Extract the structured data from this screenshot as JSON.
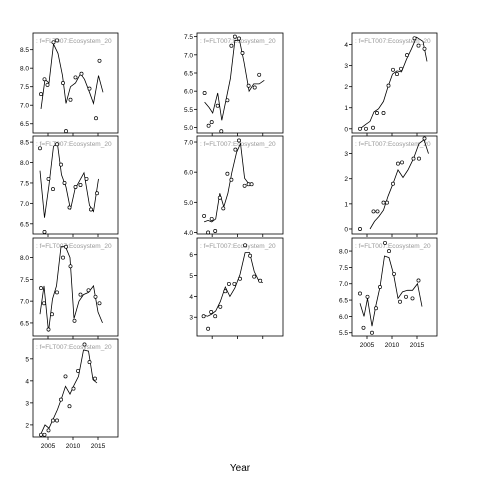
{
  "xlabel": "Year",
  "panel_title": "f=FLT007:Ecosystem_20",
  "chart_data": [
    {
      "type": "scatter",
      "title": "f=FLT007:Ecosystem_20",
      "xlim": [
        2002,
        2019
      ],
      "ylim": [
        6.25,
        8.95
      ],
      "yticks": [
        6.5,
        7.0,
        7.5,
        8.0,
        8.5
      ],
      "ytick_labels": [
        "6.5",
        "7.0",
        "7.5",
        "8.0",
        "8.5"
      ],
      "xtick_labels": [],
      "points": [
        [
          2003.6,
          7.3
        ],
        [
          2004.3,
          7.7
        ],
        [
          2004.9,
          7.55
        ],
        [
          2006.1,
          8.7
        ],
        [
          2006.8,
          8.75
        ],
        [
          2008.0,
          7.6
        ],
        [
          2008.6,
          6.3
        ],
        [
          2009.5,
          7.15
        ],
        [
          2010.5,
          7.75
        ],
        [
          2011.7,
          7.85
        ],
        [
          2013.3,
          7.45
        ],
        [
          2014.6,
          6.65
        ],
        [
          2015.3,
          8.2
        ]
      ],
      "line": [
        [
          2003.6,
          6.9
        ],
        [
          2004.4,
          7.7
        ],
        [
          2005.2,
          7.6
        ],
        [
          2006.1,
          8.65
        ],
        [
          2007.0,
          8.4
        ],
        [
          2007.9,
          7.8
        ],
        [
          2008.6,
          7.05
        ],
        [
          2009.5,
          7.5
        ],
        [
          2010.5,
          7.6
        ],
        [
          2011.5,
          7.85
        ],
        [
          2012.3,
          7.7
        ],
        [
          2013.3,
          7.35
        ],
        [
          2014.1,
          7.05
        ],
        [
          2015.1,
          7.8
        ],
        [
          2016.0,
          7.35
        ]
      ]
    },
    {
      "type": "scatter",
      "title": "f=FLT007:Ecosystem_20",
      "xlim": [
        2002,
        2019
      ],
      "ylim": [
        4.85,
        7.6
      ],
      "yticks": [
        5.0,
        5.5,
        6.0,
        6.5,
        7.0,
        7.5
      ],
      "ytick_labels": [
        "5.0",
        "5.5",
        "6.0",
        "6.5",
        "7.0",
        "7.5"
      ],
      "xtick_labels": [],
      "points": [
        [
          2003.5,
          5.95
        ],
        [
          2004.3,
          5.05
        ],
        [
          2004.9,
          5.15
        ],
        [
          2006.1,
          5.6
        ],
        [
          2006.8,
          4.9
        ],
        [
          2008.0,
          5.75
        ],
        [
          2008.8,
          7.25
        ],
        [
          2009.5,
          7.5
        ],
        [
          2010.3,
          7.45
        ],
        [
          2011.0,
          7.05
        ],
        [
          2012.2,
          6.15
        ],
        [
          2013.4,
          6.1
        ],
        [
          2014.3,
          6.45
        ]
      ],
      "line": [
        [
          2003.5,
          5.7
        ],
        [
          2004.4,
          5.55
        ],
        [
          2005.1,
          5.4
        ],
        [
          2006.1,
          5.95
        ],
        [
          2006.9,
          5.2
        ],
        [
          2007.8,
          5.8
        ],
        [
          2008.6,
          6.35
        ],
        [
          2009.5,
          7.4
        ],
        [
          2010.4,
          7.4
        ],
        [
          2011.3,
          6.8
        ],
        [
          2012.3,
          6.0
        ],
        [
          2013.2,
          6.2
        ],
        [
          2014.3,
          6.2
        ],
        [
          2015.3,
          6.3
        ]
      ]
    },
    {
      "type": "scatter",
      "title": "f=FLT007:Ecosystem_20",
      "xlim": [
        2002,
        2019
      ],
      "ylim": [
        -0.2,
        4.55
      ],
      "yticks": [
        0,
        1,
        2,
        3,
        4
      ],
      "ytick_labels": [
        "0",
        "1",
        "2",
        "3",
        "4"
      ],
      "xtick_labels": [],
      "points": [
        [
          2003.6,
          0.0
        ],
        [
          2004.8,
          0.0
        ],
        [
          2006.2,
          0.05
        ],
        [
          2007.0,
          0.75
        ],
        [
          2008.3,
          0.75
        ],
        [
          2009.3,
          2.05
        ],
        [
          2010.2,
          2.8
        ],
        [
          2011.0,
          2.6
        ],
        [
          2011.8,
          2.85
        ],
        [
          2013.0,
          3.5
        ],
        [
          2014.5,
          4.3
        ],
        [
          2015.3,
          3.95
        ],
        [
          2016.5,
          3.8
        ]
      ],
      "line": [
        [
          2003.6,
          0.0
        ],
        [
          2004.7,
          0.2
        ],
        [
          2005.6,
          0.35
        ],
        [
          2006.4,
          0.8
        ],
        [
          2007.3,
          0.95
        ],
        [
          2008.3,
          1.3
        ],
        [
          2009.2,
          2.0
        ],
        [
          2010.1,
          2.6
        ],
        [
          2011.0,
          2.75
        ],
        [
          2011.9,
          2.7
        ],
        [
          2012.9,
          3.3
        ],
        [
          2013.9,
          3.8
        ],
        [
          2014.9,
          4.35
        ],
        [
          2016.2,
          4.15
        ],
        [
          2017.0,
          3.2
        ]
      ]
    },
    {
      "type": "scatter",
      "title": "f=FLT007:Ecosystem_20",
      "xlim": [
        2002,
        2019
      ],
      "ylim": [
        6.25,
        8.65
      ],
      "yticks": [
        6.5,
        7.0,
        7.5,
        8.0,
        8.5
      ],
      "ytick_labels": [
        "6.5",
        "7.0",
        "7.5",
        "8.0",
        "8.5"
      ],
      "xtick_labels": [],
      "points": [
        [
          2003.4,
          8.35
        ],
        [
          2004.3,
          6.3
        ],
        [
          2005.1,
          7.6
        ],
        [
          2006.0,
          7.35
        ],
        [
          2006.8,
          8.45
        ],
        [
          2007.6,
          7.95
        ],
        [
          2008.3,
          7.5
        ],
        [
          2009.3,
          6.9
        ],
        [
          2010.5,
          7.4
        ],
        [
          2011.5,
          7.45
        ],
        [
          2012.7,
          7.6
        ],
        [
          2013.6,
          6.85
        ],
        [
          2014.8,
          7.25
        ]
      ],
      "line": [
        [
          2003.4,
          7.8
        ],
        [
          2004.3,
          6.65
        ],
        [
          2005.2,
          7.45
        ],
        [
          2006.1,
          8.4
        ],
        [
          2006.9,
          8.45
        ],
        [
          2007.7,
          7.7
        ],
        [
          2008.6,
          7.4
        ],
        [
          2009.5,
          6.85
        ],
        [
          2010.4,
          7.35
        ],
        [
          2011.3,
          7.55
        ],
        [
          2012.2,
          7.75
        ],
        [
          2013.3,
          6.95
        ],
        [
          2014.1,
          6.8
        ],
        [
          2015.1,
          7.6
        ]
      ]
    },
    {
      "type": "scatter",
      "title": "f=FLT007:Ecosystem_20",
      "xlim": [
        2002,
        2019
      ],
      "ylim": [
        3.95,
        7.2
      ],
      "yticks": [
        4.0,
        5.0,
        6.0,
        7.0
      ],
      "ytick_labels": [
        "4.0",
        "5.0",
        "6.0",
        "7.0"
      ],
      "xtick_labels": [],
      "points": [
        [
          2003.4,
          4.55
        ],
        [
          2004.2,
          4.0
        ],
        [
          2004.9,
          4.45
        ],
        [
          2005.6,
          4.05
        ],
        [
          2006.5,
          5.15
        ],
        [
          2007.2,
          4.8
        ],
        [
          2008.0,
          5.95
        ],
        [
          2008.8,
          5.75
        ],
        [
          2009.6,
          6.75
        ],
        [
          2010.3,
          7.05
        ],
        [
          2011.4,
          5.55
        ],
        [
          2012.2,
          5.6
        ],
        [
          2012.8,
          5.6
        ]
      ],
      "line": [
        [
          2003.4,
          4.35
        ],
        [
          2004.2,
          4.4
        ],
        [
          2004.9,
          4.35
        ],
        [
          2005.7,
          4.45
        ],
        [
          2006.5,
          5.3
        ],
        [
          2007.3,
          4.85
        ],
        [
          2008.1,
          5.3
        ],
        [
          2008.9,
          6.0
        ],
        [
          2009.8,
          6.65
        ],
        [
          2010.6,
          6.95
        ],
        [
          2011.4,
          5.8
        ],
        [
          2012.3,
          5.6
        ],
        [
          2013.0,
          5.6
        ]
      ]
    },
    {
      "type": "scatter",
      "title": "f=FLT007:Ecosystem_20",
      "xlim": [
        2002,
        2019
      ],
      "ylim": [
        -0.2,
        3.7
      ],
      "yticks": [
        0,
        1,
        2,
        3
      ],
      "ytick_labels": [
        "0",
        "1",
        "2",
        "3"
      ],
      "xtick_labels": [],
      "points": [
        [
          2003.6,
          0.0
        ],
        [
          2006.3,
          0.7
        ],
        [
          2007.1,
          0.7
        ],
        [
          2008.3,
          1.05
        ],
        [
          2009.0,
          1.05
        ],
        [
          2010.2,
          1.8
        ],
        [
          2011.2,
          2.6
        ],
        [
          2012.0,
          2.65
        ],
        [
          2014.3,
          2.8
        ],
        [
          2015.4,
          2.8
        ],
        [
          2016.5,
          3.6
        ]
      ],
      "line": [
        [
          2005.6,
          0.0
        ],
        [
          2006.5,
          0.3
        ],
        [
          2007.4,
          0.5
        ],
        [
          2008.3,
          0.75
        ],
        [
          2009.2,
          1.3
        ],
        [
          2010.2,
          1.8
        ],
        [
          2011.2,
          2.35
        ],
        [
          2012.2,
          2.05
        ],
        [
          2013.2,
          2.35
        ],
        [
          2014.3,
          2.8
        ],
        [
          2015.4,
          3.4
        ],
        [
          2016.4,
          3.55
        ],
        [
          2017.3,
          3.0
        ]
      ]
    },
    {
      "type": "scatter",
      "title": "f=FLT007:Ecosystem_20",
      "xlim": [
        2002,
        2019
      ],
      "ylim": [
        6.2,
        8.45
      ],
      "yticks": [
        6.5,
        7.0,
        7.5,
        8.0
      ],
      "ytick_labels": [
        "6.5",
        "7.0",
        "7.5",
        "8.0"
      ],
      "xtick_labels": [],
      "points": [
        [
          2003.6,
          7.3
        ],
        [
          2004.2,
          6.95
        ],
        [
          2005.1,
          6.35
        ],
        [
          2005.8,
          6.7
        ],
        [
          2006.8,
          7.2
        ],
        [
          2008.0,
          8.0
        ],
        [
          2008.6,
          8.25
        ],
        [
          2009.5,
          7.8
        ],
        [
          2010.3,
          6.55
        ],
        [
          2011.5,
          7.15
        ],
        [
          2013.1,
          7.25
        ],
        [
          2014.5,
          7.1
        ],
        [
          2015.3,
          6.95
        ]
      ],
      "line": [
        [
          2003.4,
          6.7
        ],
        [
          2004.2,
          7.35
        ],
        [
          2005.1,
          6.3
        ],
        [
          2005.9,
          7.05
        ],
        [
          2006.7,
          7.35
        ],
        [
          2007.6,
          8.25
        ],
        [
          2008.5,
          8.25
        ],
        [
          2009.4,
          8.0
        ],
        [
          2010.2,
          6.6
        ],
        [
          2011.2,
          7.0
        ],
        [
          2012.1,
          7.15
        ],
        [
          2013.1,
          7.2
        ],
        [
          2014.1,
          7.35
        ],
        [
          2015.0,
          6.75
        ],
        [
          2015.9,
          6.5
        ]
      ]
    },
    {
      "type": "scatter",
      "title": "f=FLT007:Ecosystem_20",
      "xlim": [
        2002,
        2019
      ],
      "ylim": [
        2.1,
        6.8
      ],
      "yticks": [
        3,
        4,
        5,
        6
      ],
      "ytick_labels": [
        "3",
        "4",
        "5",
        "6"
      ],
      "xtick_labels": [],
      "points": [
        [
          2003.3,
          3.05
        ],
        [
          2004.2,
          2.45
        ],
        [
          2004.8,
          3.25
        ],
        [
          2005.6,
          3.05
        ],
        [
          2006.6,
          3.5
        ],
        [
          2007.6,
          4.25
        ],
        [
          2008.3,
          4.6
        ],
        [
          2009.4,
          4.6
        ],
        [
          2010.5,
          4.85
        ],
        [
          2011.5,
          6.45
        ],
        [
          2012.5,
          5.95
        ],
        [
          2013.3,
          4.95
        ],
        [
          2014.5,
          4.75
        ]
      ],
      "line": [
        [
          2003.3,
          3.1
        ],
        [
          2004.1,
          3.05
        ],
        [
          2004.9,
          3.15
        ],
        [
          2005.7,
          3.3
        ],
        [
          2006.6,
          3.75
        ],
        [
          2007.6,
          4.45
        ],
        [
          2008.5,
          4.0
        ],
        [
          2009.5,
          4.4
        ],
        [
          2010.5,
          5.05
        ],
        [
          2011.5,
          6.1
        ],
        [
          2012.4,
          6.1
        ],
        [
          2013.3,
          5.2
        ],
        [
          2014.2,
          4.75
        ],
        [
          2015.0,
          4.65
        ]
      ]
    },
    {
      "type": "scatter",
      "title": "f=FLT007:Ecosystem_20",
      "xlim": [
        2002,
        2019
      ],
      "ylim": [
        5.4,
        8.4
      ],
      "yticks": [
        5.5,
        6.0,
        6.5,
        7.0,
        7.5,
        8.0
      ],
      "ytick_labels": [
        "5.5",
        "6.0",
        "6.5",
        "7.0",
        "7.5",
        "8.0"
      ],
      "xtick_labels": [
        "2005",
        "2010",
        "2015"
      ],
      "points": [
        [
          2003.6,
          6.7
        ],
        [
          2004.3,
          5.65
        ],
        [
          2005.1,
          6.6
        ],
        [
          2006.0,
          5.5
        ],
        [
          2006.8,
          6.25
        ],
        [
          2007.6,
          6.9
        ],
        [
          2008.6,
          8.25
        ],
        [
          2009.4,
          8.0
        ],
        [
          2010.4,
          7.3
        ],
        [
          2011.6,
          6.45
        ],
        [
          2012.8,
          6.6
        ],
        [
          2014.1,
          6.55
        ],
        [
          2015.3,
          7.1
        ]
      ],
      "line": [
        [
          2003.6,
          6.4
        ],
        [
          2004.4,
          6.0
        ],
        [
          2005.1,
          6.55
        ],
        [
          2006.0,
          5.7
        ],
        [
          2006.8,
          6.35
        ],
        [
          2007.6,
          6.9
        ],
        [
          2008.5,
          7.85
        ],
        [
          2009.4,
          7.8
        ],
        [
          2010.3,
          7.3
        ],
        [
          2011.2,
          6.55
        ],
        [
          2012.1,
          6.75
        ],
        [
          2013.1,
          6.8
        ],
        [
          2014.1,
          6.8
        ],
        [
          2015.1,
          7.0
        ],
        [
          2016.0,
          6.3
        ]
      ]
    },
    {
      "type": "scatter",
      "title": "f=FLT007:Ecosystem_20",
      "xlim": [
        2002,
        2019
      ],
      "ylim": [
        1.45,
        5.9
      ],
      "yticks": [
        2,
        3,
        4,
        5
      ],
      "ytick_labels": [
        "2",
        "3",
        "4",
        "5"
      ],
      "xtick_labels": [
        "2005",
        "2010",
        "2015"
      ],
      "points": [
        [
          2003.6,
          1.55
        ],
        [
          2004.3,
          1.55
        ],
        [
          2005.1,
          1.75
        ],
        [
          2006.0,
          2.2
        ],
        [
          2006.8,
          2.2
        ],
        [
          2007.6,
          3.15
        ],
        [
          2008.5,
          4.2
        ],
        [
          2009.3,
          2.85
        ],
        [
          2010.1,
          3.65
        ],
        [
          2011.0,
          4.45
        ],
        [
          2012.3,
          5.65
        ],
        [
          2013.3,
          4.85
        ],
        [
          2014.4,
          4.1
        ]
      ],
      "line": [
        [
          2003.6,
          1.6
        ],
        [
          2004.4,
          2.0
        ],
        [
          2005.2,
          1.85
        ],
        [
          2006.0,
          2.25
        ],
        [
          2006.9,
          2.7
        ],
        [
          2007.7,
          3.2
        ],
        [
          2008.5,
          3.75
        ],
        [
          2009.4,
          3.4
        ],
        [
          2010.2,
          3.8
        ],
        [
          2011.1,
          4.2
        ],
        [
          2012.1,
          5.4
        ],
        [
          2013.1,
          5.35
        ],
        [
          2014.0,
          4.05
        ],
        [
          2014.8,
          3.9
        ]
      ]
    },
    {
      "type": "scatter",
      "title": "",
      "xlim": [
        2002,
        2019
      ],
      "ylim": [
        0,
        1
      ],
      "yticks": [],
      "ytick_labels": [],
      "xtick_labels": [],
      "points": [],
      "line": [],
      "empty": true
    },
    {
      "type": "scatter",
      "title": "",
      "xlim": [
        2002,
        2019
      ],
      "ylim": [
        0,
        1
      ],
      "yticks": [],
      "ytick_labels": [],
      "xtick_labels": [],
      "points": [],
      "line": [],
      "empty": true
    }
  ]
}
